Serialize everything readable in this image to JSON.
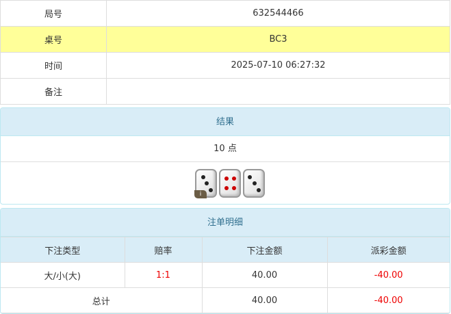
{
  "info": {
    "rows": [
      {
        "label": "局号",
        "value": "632544466"
      },
      {
        "label": "桌号",
        "value": "BC3"
      },
      {
        "label": "时间",
        "value": "2025-07-10 06:27:32"
      },
      {
        "label": "备注",
        "value": ""
      }
    ]
  },
  "result": {
    "title": "结果",
    "points": "10 点",
    "dice": [
      3,
      4,
      3
    ],
    "info_badge": "i"
  },
  "bets": {
    "title": "注单明细",
    "headers": [
      "下注类型",
      "赔率",
      "下注金额",
      "派彩金额"
    ],
    "rows": [
      {
        "type": "大/小(大)",
        "odds": "1:1",
        "amount": "40.00",
        "payout": "-40.00"
      }
    ],
    "total": {
      "label": "总计",
      "amount": "40.00",
      "payout": "-40.00"
    }
  },
  "colors": {
    "highlight": "#ffff99",
    "header": "#d9edf7",
    "negative": "#ee0000"
  }
}
